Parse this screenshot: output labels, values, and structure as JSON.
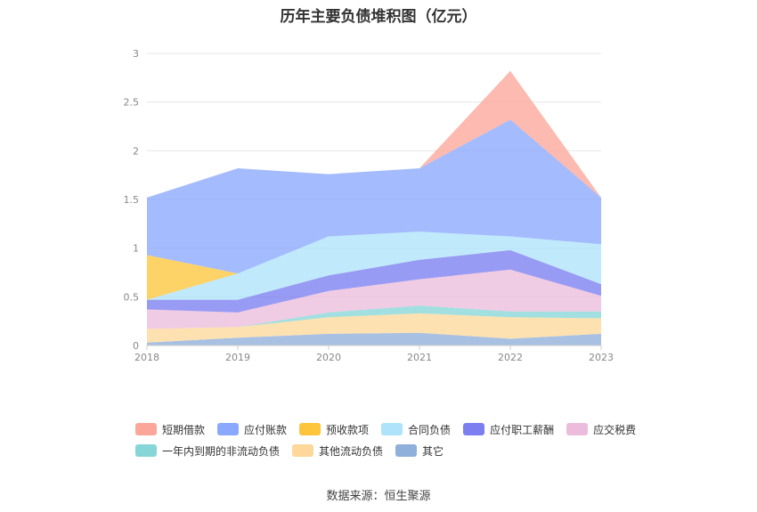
{
  "chart_data": {
    "type": "area",
    "stacked": true,
    "title": "历年主要负债堆积图（亿元）",
    "x": [
      "2018",
      "2019",
      "2020",
      "2021",
      "2022",
      "2023"
    ],
    "ylim": [
      0,
      3
    ],
    "yticks": [
      "0",
      "0.5",
      "1",
      "1.5",
      "2",
      "2.5",
      "3"
    ],
    "grid": true,
    "legend_position": "bottom",
    "series": [
      {
        "name": "其它",
        "color": "#8fb0db",
        "values": [
          0.03,
          0.08,
          0.12,
          0.13,
          0.07,
          0.12
        ]
      },
      {
        "name": "其他流动负债",
        "color": "#fdd89a",
        "values": [
          0.14,
          0.11,
          0.17,
          0.2,
          0.22,
          0.16
        ]
      },
      {
        "name": "一年内到期的非流动负债",
        "color": "#87d6d7",
        "values": [
          0.0,
          0.0,
          0.05,
          0.08,
          0.06,
          0.07
        ]
      },
      {
        "name": "应交税费",
        "color": "#ecbcdc",
        "values": [
          0.2,
          0.15,
          0.22,
          0.27,
          0.43,
          0.16
        ]
      },
      {
        "name": "应付职工薪酬",
        "color": "#7b7ff0",
        "values": [
          0.1,
          0.13,
          0.16,
          0.2,
          0.2,
          0.12
        ]
      },
      {
        "name": "合同负债",
        "color": "#aee3fb",
        "values": [
          0.0,
          0.27,
          0.4,
          0.29,
          0.14,
          0.41
        ]
      },
      {
        "name": "预收款项",
        "color": "#fcc53b",
        "values": [
          0.46,
          0.0,
          0.0,
          0.0,
          0.0,
          0.0
        ]
      },
      {
        "name": "应付账款",
        "color": "#8aa8fc",
        "values": [
          0.59,
          1.08,
          0.64,
          0.65,
          1.2,
          0.48
        ]
      },
      {
        "name": "短期借款",
        "color": "#fca69a",
        "values": [
          0.0,
          0.0,
          0.0,
          0.0,
          0.5,
          0.0
        ]
      }
    ],
    "legend_order": [
      "短期借款",
      "应付账款",
      "预收款项",
      "合同负债",
      "应付职工薪酬",
      "应交税费",
      "一年内到期的非流动负债",
      "其他流动负债",
      "其它"
    ]
  },
  "source": "数据来源：恒生聚源"
}
